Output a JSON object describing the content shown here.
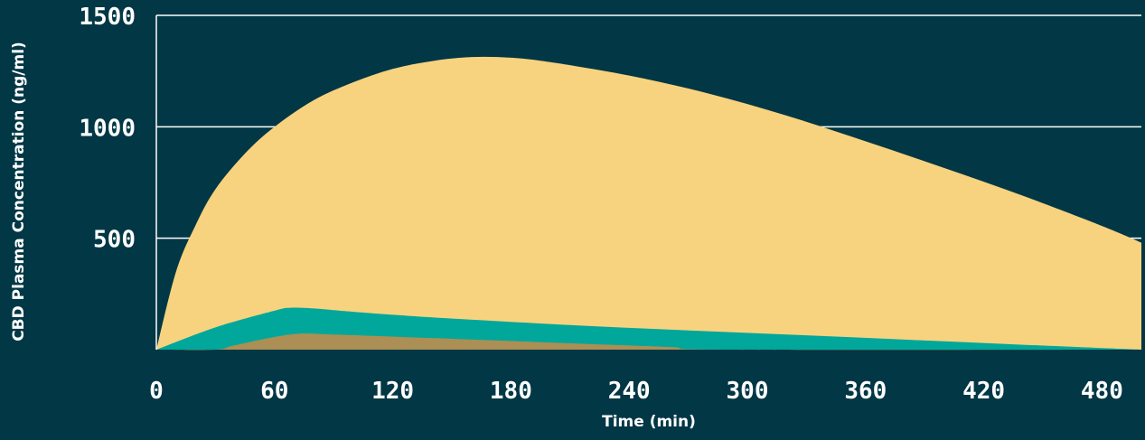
{
  "chart_data": {
    "type": "area",
    "xlabel": "Time (min)",
    "ylabel": "CBD Plasma Concentration (ng/ml)",
    "xlim": [
      0,
      500
    ],
    "ylim": [
      0,
      1500
    ],
    "xticks": [
      0,
      60,
      120,
      180,
      240,
      300,
      360,
      420,
      480
    ],
    "yticks": [
      500,
      1000,
      1500
    ],
    "grid": true,
    "legend": "none",
    "series": [
      {
        "color": "#f7d37f",
        "x": [
          0,
          10,
          20,
          30,
          45,
          60,
          80,
          100,
          120,
          140,
          160,
          180,
          200,
          240,
          280,
          320,
          360,
          400,
          440,
          480,
          500
        ],
        "y": [
          0,
          350,
          560,
          720,
          880,
          1000,
          1120,
          1200,
          1260,
          1295,
          1313,
          1310,
          1290,
          1230,
          1150,
          1050,
          935,
          815,
          690,
          555,
          480
        ]
      },
      {
        "color": "#01a79a",
        "x": [
          0,
          30,
          60,
          68,
          80,
          100,
          140,
          200,
          260,
          320,
          380,
          440,
          500
        ],
        "y": [
          0,
          100,
          175,
          188,
          185,
          170,
          145,
          115,
          90,
          68,
          45,
          22,
          0
        ]
      },
      {
        "color": "#ab8f55",
        "x": [
          0,
          30,
          40,
          68,
          90,
          140,
          200,
          260,
          290,
          500
        ],
        "y": [
          0,
          0,
          20,
          68,
          68,
          52,
          32,
          12,
          0,
          0
        ]
      }
    ]
  }
}
